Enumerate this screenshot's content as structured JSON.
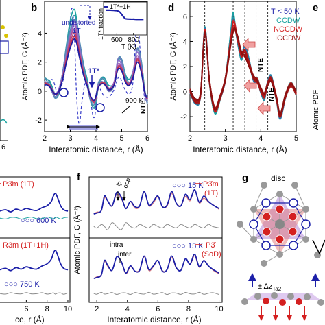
{
  "chart_data": [
    {
      "panel": "b",
      "type": "line",
      "xlabel": "Interatomic distance, r (Å)",
      "ylabel": "Atomic PDF, G (Å⁻²)",
      "xlim": [
        2,
        6
      ],
      "ylim": [
        -2.8,
        6.2
      ],
      "xticks": [
        2,
        3,
        4,
        5,
        6
      ],
      "yticks": [
        -2,
        0,
        2,
        4
      ],
      "annotations": [
        "undistorted",
        "1T",
        "1T*",
        "900 K",
        "NTE"
      ],
      "series": [
        {
          "name": "undistorted 1T",
          "style": "dashed",
          "x": [
            2.0,
            2.3,
            2.5,
            2.7,
            2.9,
            3.05,
            3.15,
            3.25,
            3.35,
            3.45,
            3.6,
            3.75,
            3.9,
            4.0,
            4.1,
            4.3,
            4.5,
            4.7,
            4.9,
            5.1,
            5.3,
            5.45,
            5.6,
            5.75,
            5.9,
            6.0
          ],
          "y": [
            0.3,
            0.8,
            -0.1,
            0.6,
            2.8,
            5.7,
            4.2,
            -0.5,
            -2.3,
            -0.8,
            0.6,
            -0.3,
            -1.8,
            -1.2,
            0.2,
            -0.3,
            -0.4,
            0.1,
            1.0,
            0.2,
            -0.2,
            0.8,
            4.9,
            2.0,
            -0.6,
            -0.2
          ]
        },
        {
          "name": "900 K",
          "style": "solid",
          "x": [
            2.0,
            2.2,
            2.4,
            2.55,
            2.7,
            2.85,
            3.0,
            3.15,
            3.25,
            3.35,
            3.5,
            3.65,
            3.8,
            3.95,
            4.1,
            4.3,
            4.5,
            4.7,
            4.85,
            5.0,
            5.15,
            5.3,
            5.45,
            5.6,
            5.75,
            5.9,
            6.0
          ],
          "y": [
            0.5,
            0.3,
            -0.2,
            0.0,
            0.8,
            2.0,
            3.0,
            3.6,
            3.3,
            2.4,
            1.2,
            0.4,
            -0.4,
            -0.6,
            0.3,
            0.5,
            0.1,
            0.4,
            1.5,
            1.4,
            0.6,
            0.4,
            1.0,
            2.0,
            1.4,
            -0.1,
            -0.5
          ]
        }
      ],
      "inset": {
        "type": "line",
        "xlabel": "T (K)",
        "ylabel": "1T* fraction",
        "legend": "1T*+1H",
        "xlim": [
          450,
          950
        ],
        "ylim": [
          0,
          1.05
        ],
        "xticks": [
          600,
          800
        ],
        "x": [
          470,
          520,
          570,
          600,
          630,
          650,
          670,
          690,
          700,
          720,
          760,
          800,
          840,
          880,
          920
        ],
        "y": [
          0.97,
          0.97,
          0.96,
          0.95,
          0.91,
          0.84,
          0.75,
          0.67,
          0.63,
          0.62,
          0.61,
          0.61,
          0.6,
          0.6,
          0.6
        ]
      }
    },
    {
      "panel": "d",
      "type": "line",
      "xlabel": "Interatomic distance, r (Å)",
      "ylabel": "Atomic PDF, G (Å⁻²)",
      "xlim": [
        2,
        5
      ],
      "ylim": [
        -3.2,
        7.2
      ],
      "xticks": [
        2,
        3,
        4,
        5
      ],
      "yticks": [
        -2,
        0,
        2,
        4,
        6
      ],
      "legend": [
        "T < 50 K",
        "CCDW",
        "NCCDW",
        "ICCDW"
      ],
      "annotations": [
        "NTE",
        "NTE"
      ],
      "reference_lines_x": [
        2.42,
        3.22,
        3.55,
        3.87,
        4.2
      ],
      "series": [
        {
          "name": "CCDW",
          "x": [
            2.0,
            2.15,
            2.3,
            2.42,
            2.55,
            2.7,
            2.85,
            3.0,
            3.15,
            3.22,
            3.32,
            3.45,
            3.55,
            3.65,
            3.8,
            3.9,
            4.0,
            4.1,
            4.2,
            4.3,
            4.45,
            4.55,
            4.7,
            4.85,
            5.0
          ],
          "y": [
            0.0,
            -0.9,
            -0.3,
            5.1,
            0.8,
            -1.6,
            -0.6,
            1.0,
            4.6,
            6.2,
            4.4,
            2.6,
            4.0,
            2.8,
            0.8,
            1.0,
            0.0,
            -0.6,
            0.8,
            1.2,
            -0.8,
            -2.2,
            -0.4,
            0.6,
            -0.2
          ]
        },
        {
          "name": "ICCDW",
          "x": [
            2.0,
            2.15,
            2.3,
            2.42,
            2.55,
            2.7,
            2.85,
            3.0,
            3.15,
            3.25,
            3.35,
            3.45,
            3.55,
            3.65,
            3.8,
            3.9,
            4.0,
            4.1,
            4.2,
            4.3,
            4.45,
            4.55,
            4.7,
            4.85,
            5.0
          ],
          "y": [
            0.1,
            -0.7,
            -0.2,
            4.6,
            0.9,
            -1.3,
            -0.4,
            1.0,
            3.6,
            4.8,
            4.3,
            3.2,
            2.9,
            2.2,
            1.2,
            0.8,
            0.2,
            -0.2,
            0.6,
            0.9,
            -0.5,
            -1.8,
            -0.3,
            0.5,
            -0.1
          ]
        }
      ]
    },
    {
      "panel": "f",
      "type": "line",
      "xlabel": "Interatomic distance, r (Å)",
      "ylabel": "Atomic PDF, G (Å⁻²)",
      "xlim": [
        1.5,
        10.2
      ],
      "xticks": [
        2,
        4,
        6,
        8,
        10
      ],
      "subplots": [
        {
          "legend": [
            "15 K",
            "P3̄m (1T)"
          ],
          "annotations": [
            "ip",
            "oop"
          ]
        },
        {
          "legend": [
            "15 K",
            "P3̄ (SoD)"
          ],
          "annotations": [
            "intra",
            "inter"
          ]
        }
      ],
      "x": [
        1.8,
        2.0,
        2.3,
        2.5,
        2.7,
        3.0,
        3.3,
        3.6,
        3.9,
        4.2,
        4.5,
        4.8,
        5.1,
        5.4,
        5.7,
        6.0,
        6.3,
        6.6,
        6.9,
        7.2,
        7.5,
        7.8,
        8.1,
        8.4,
        8.7,
        9.0,
        9.3,
        9.6,
        10.0
      ],
      "y": [
        0.0,
        0.1,
        0.4,
        2.0,
        1.5,
        0.9,
        2.4,
        1.9,
        0.6,
        1.4,
        0.8,
        0.9,
        2.5,
        1.0,
        1.4,
        2.0,
        0.8,
        1.0,
        2.5,
        1.2,
        0.9,
        2.2,
        1.6,
        2.7,
        1.3,
        2.0,
        1.4,
        1.0,
        0.6
      ]
    },
    {
      "panel": "left",
      "type": "line",
      "xlabel": "ce, r (Å)",
      "xlim": [
        3.4,
        10.2
      ],
      "xticks": [
        6,
        8,
        10
      ],
      "subplots": [
        {
          "legend": [
            "P3̄m (1T)"
          ],
          "annotations": [
            "600 K"
          ]
        },
        {
          "legend": [
            "R3m (1T+1H)"
          ],
          "annotations": [
            "750 K"
          ]
        }
      ],
      "x": [
        3.4,
        4.0,
        4.5,
        5.0,
        5.5,
        6.0,
        6.5,
        7.0,
        7.5,
        8.0,
        8.4,
        8.6,
        8.8,
        9.0,
        9.3,
        9.6,
        10.0
      ],
      "y": [
        0.4,
        0.6,
        0.3,
        0.7,
        0.5,
        0.8,
        0.6,
        0.5,
        0.9,
        1.2,
        1.8,
        2.6,
        3.0,
        2.4,
        1.2,
        0.6,
        0.4
      ]
    }
  ],
  "labels": {
    "b": "b",
    "d": "d",
    "e": "e",
    "f": "f",
    "g": "g",
    "disc": "disc",
    "undistorted": "undistorted",
    "one_t": "1T",
    "one_t_star": "1T*",
    "nine_hundred": "900 K",
    "nte": "NTE",
    "nte_d1": "NTE",
    "nte_d2": "NTE",
    "legend_d1": "T < 50 K",
    "legend_d2": "CCDW",
    "legend_d3": "NCCDW",
    "legend_d4": "ICCDW",
    "y_label": "Atomic PDF, G (Å⁻²)",
    "x_label": "Interatomic distance, r (Å)",
    "left_x_label": "ce, r (Å)",
    "inset_y": "1T* fraction",
    "inset_x": "T (K)",
    "inset_legend": "1T*+1H",
    "f_top_temp": "15 K",
    "f_top_model1": "P3̄m",
    "f_top_model2": "(1T)",
    "f_bot_temp": "15 K",
    "f_bot_model1": "P3̄",
    "f_bot_model2": "(SoD)",
    "ip": "ip",
    "oop": "oop",
    "intra": "intra",
    "inter": "inter",
    "l_top_model": "P3̄m  (1T)",
    "l_top_temp": "600 K",
    "l_bot_model": "R3m (1T+1H)",
    "l_bot_temp": "750 K",
    "g_sub": "± Δz",
    "g_sub2": "Ta2"
  },
  "colors": {
    "red": "#d42020",
    "blue": "#1b1fa8",
    "teal": "#1aa3a0",
    "gray": "#8a8a8a",
    "purple": "#9a6ad0",
    "shade": "#8f8fe0",
    "arrow": "#f0a0a0"
  }
}
